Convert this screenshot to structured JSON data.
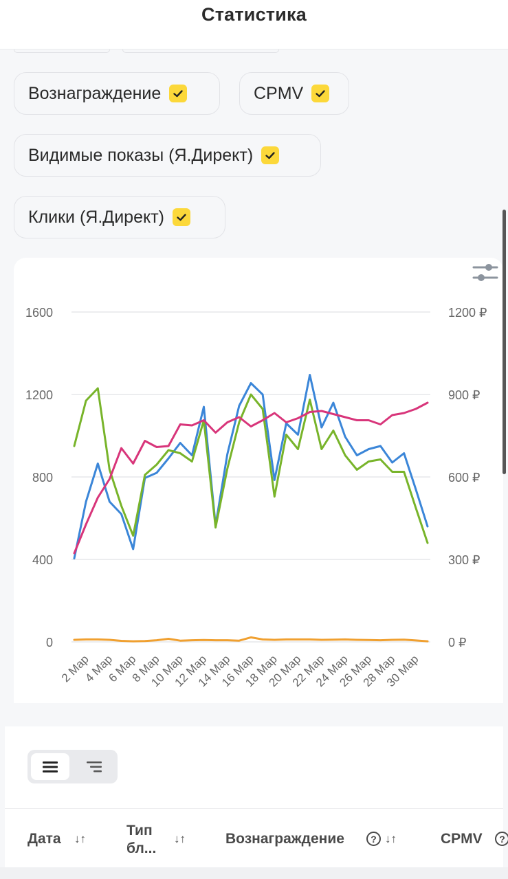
{
  "header": {
    "title": "Статистика"
  },
  "filters": [
    {
      "label": "Вознаграждение",
      "checked": true
    },
    {
      "label": "CPMV",
      "checked": true
    },
    {
      "label": "Видимые показы (Я.Директ)",
      "checked": true
    },
    {
      "label": "Клики (Я.Директ)",
      "checked": true
    }
  ],
  "chart_data": {
    "type": "line",
    "y_left": {
      "ticks": [
        "0",
        "400",
        "800",
        "1200",
        "1600"
      ],
      "range": [
        0,
        1600
      ]
    },
    "y_right": {
      "ticks": [
        "0 ₽",
        "300 ₽",
        "600 ₽",
        "900 ₽",
        "1200 ₽"
      ],
      "range": [
        0,
        1200
      ]
    },
    "x_ticks": [
      "2 Мар",
      "4 Мар",
      "6 Мар",
      "8 Мар",
      "10 Мар",
      "12 Мар",
      "14 Мар",
      "16 Мар",
      "18 Мар",
      "20 Мар",
      "22 Мар",
      "24 Мар",
      "26 Мар",
      "28 Мар",
      "30 Мар"
    ],
    "x": [
      1,
      2,
      3,
      4,
      5,
      6,
      7,
      8,
      9,
      10,
      11,
      12,
      13,
      14,
      15,
      16,
      17,
      18,
      19,
      20,
      21,
      22,
      23,
      24,
      25,
      26,
      27,
      28,
      29,
      30,
      31
    ],
    "series": [
      {
        "color": "#3b86d8",
        "axis": "left",
        "values": [
          405,
          680,
          865,
          680,
          620,
          450,
          795,
          820,
          890,
          965,
          905,
          1140,
          565,
          910,
          1145,
          1255,
          1200,
          785,
          1060,
          1005,
          1295,
          1040,
          1160,
          995,
          905,
          935,
          950,
          870,
          915,
          740,
          560
        ]
      },
      {
        "color": "#78b42a",
        "axis": "left",
        "values": [
          950,
          1170,
          1230,
          835,
          660,
          515,
          810,
          860,
          930,
          915,
          875,
          1075,
          555,
          840,
          1065,
          1200,
          1130,
          705,
          1005,
          935,
          1175,
          935,
          1025,
          905,
          835,
          875,
          885,
          825,
          825,
          650,
          480
        ]
      },
      {
        "color": "#d8357a",
        "axis": "left",
        "values": [
          430,
          570,
          700,
          790,
          940,
          865,
          975,
          945,
          950,
          1055,
          1050,
          1075,
          1015,
          1065,
          1090,
          1045,
          1075,
          1110,
          1065,
          1085,
          1115,
          1120,
          1105,
          1090,
          1075,
          1075,
          1055,
          1100,
          1110,
          1130,
          1160
        ]
      },
      {
        "color": "#f0a030",
        "axis": "left",
        "values": [
          10,
          12,
          12,
          10,
          5,
          3,
          4,
          8,
          15,
          6,
          8,
          9,
          8,
          8,
          6,
          22,
          12,
          10,
          12,
          12,
          12,
          10,
          11,
          12,
          10,
          9,
          8,
          10,
          11,
          7,
          3
        ]
      }
    ],
    "grid": true
  },
  "view_toggle": {
    "options": [
      "list-view",
      "tree-view"
    ],
    "active": "list-view"
  },
  "table": {
    "columns": [
      {
        "label": "Дата"
      },
      {
        "label_line1": "Тип",
        "label_line2": "бл..."
      },
      {
        "label": "Вознаграждение"
      },
      {
        "label": "CPMV"
      }
    ],
    "sort_glyph": "↓↑",
    "help_glyph": "?"
  }
}
